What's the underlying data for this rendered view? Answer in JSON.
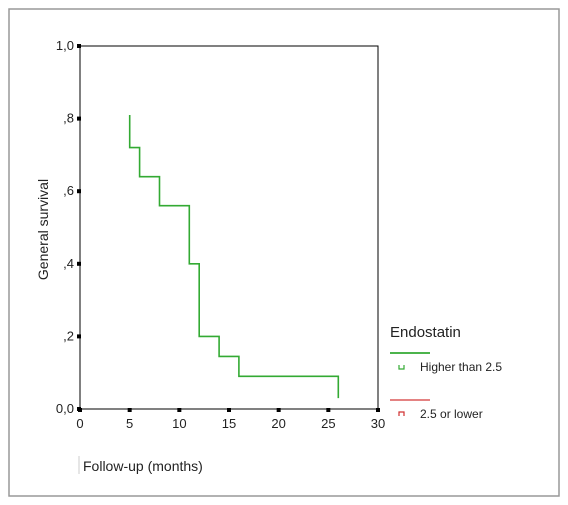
{
  "chart_data": {
    "type": "line",
    "step": true,
    "xlabel": "Follow-up (months)",
    "ylabel": "General survival",
    "xlim": [
      0,
      30
    ],
    "ylim": [
      0,
      1
    ],
    "x_ticks": [
      0,
      5,
      10,
      15,
      20,
      25,
      30
    ],
    "x_tick_labels": [
      "0",
      "5",
      "10",
      "15",
      "20",
      "25",
      "30"
    ],
    "y_ticks": [
      0,
      0.2,
      0.4,
      0.6,
      0.8,
      1.0
    ],
    "y_tick_labels": [
      "0,0",
      ",2",
      ",4",
      ",6",
      ",8",
      "1,0"
    ],
    "grid": false,
    "legend": {
      "title": "Endostatin",
      "placement": "right",
      "entries": [
        {
          "label": "Higher than 2.5",
          "color": "#33aa33",
          "censor_color": "#33aa33"
        },
        {
          "label": "2.5 or lower",
          "color": "#e07070",
          "censor_color": "#d03030"
        }
      ]
    },
    "series": [
      {
        "name": "Higher than 2.5",
        "color": "#33aa33",
        "x": [
          5,
          5,
          6,
          6,
          8,
          8,
          11,
          11,
          12,
          12,
          14,
          14,
          16,
          16,
          26,
          26
        ],
        "y": [
          0.81,
          0.72,
          0.72,
          0.64,
          0.64,
          0.56,
          0.56,
          0.4,
          0.4,
          0.2,
          0.2,
          0.145,
          0.145,
          0.09,
          0.09,
          0.03
        ]
      }
    ]
  },
  "colors": {
    "frame_border": "#999999",
    "axis": "#000000"
  }
}
